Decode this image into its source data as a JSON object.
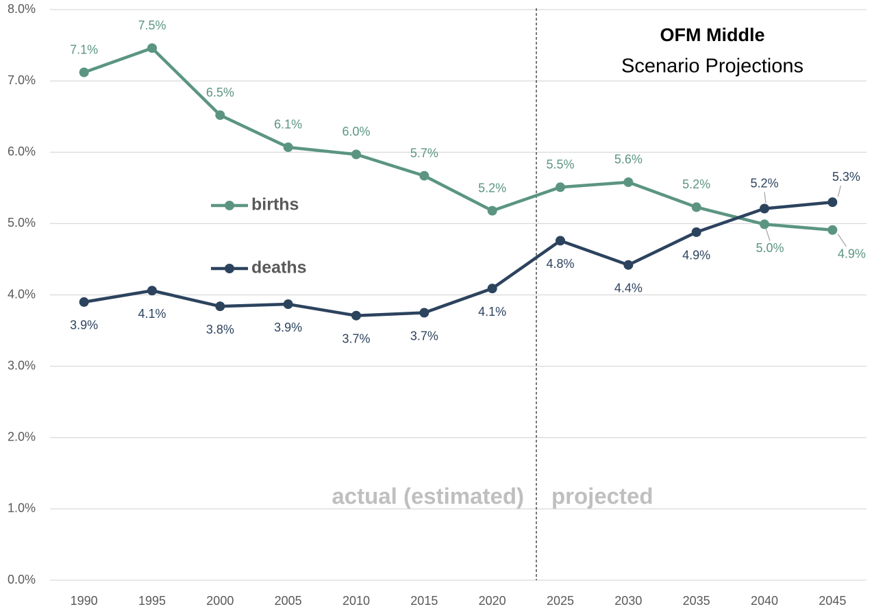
{
  "chart_data": {
    "type": "line",
    "categories": [
      "1990",
      "1995",
      "2000",
      "2005",
      "2010",
      "2015",
      "2020",
      "2025",
      "2030",
      "2035",
      "2040",
      "2045"
    ],
    "series": [
      {
        "name": "births",
        "color": "#5b9582",
        "values": [
          7.12,
          7.46,
          6.52,
          6.07,
          5.97,
          5.67,
          5.18,
          5.51,
          5.58,
          5.23,
          4.99,
          4.91
        ],
        "value_labels": [
          "7.1%",
          "7.5%",
          "6.5%",
          "6.1%",
          "6.0%",
          "5.7%",
          "5.2%",
          "5.5%",
          "5.6%",
          "5.2%",
          "5.0%",
          "4.9%"
        ]
      },
      {
        "name": "deaths",
        "color": "#2c435e",
        "values": [
          3.9,
          4.06,
          3.84,
          3.87,
          3.71,
          3.75,
          4.09,
          4.76,
          4.42,
          4.88,
          5.21,
          5.3
        ],
        "value_labels": [
          "3.9%",
          "4.1%",
          "3.8%",
          "3.9%",
          "3.7%",
          "3.7%",
          "4.1%",
          "4.8%",
          "4.4%",
          "4.9%",
          "5.2%",
          "5.3%"
        ]
      }
    ],
    "ylim": [
      0,
      8
    ],
    "yticks": [
      {
        "value": 0,
        "label": "0.0%"
      },
      {
        "value": 1,
        "label": "1.0%"
      },
      {
        "value": 2,
        "label": "2.0%"
      },
      {
        "value": 3,
        "label": "3.0%"
      },
      {
        "value": 4,
        "label": "4.0%"
      },
      {
        "value": 5,
        "label": "5.0%"
      },
      {
        "value": 6,
        "label": "6.0%"
      },
      {
        "value": 7,
        "label": "7.0%"
      },
      {
        "value": 8,
        "label": "8.0%"
      }
    ],
    "grid": true,
    "annotations": [
      "OFM Middle",
      "Scenario Projections",
      "actual (estimated)",
      "projected"
    ]
  }
}
